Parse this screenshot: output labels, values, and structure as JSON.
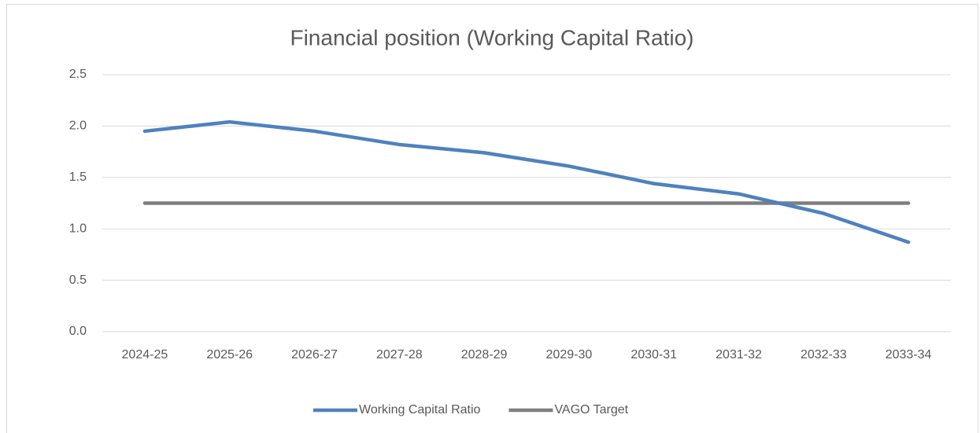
{
  "chart_data": {
    "type": "line",
    "title": "Financial position (Working Capital Ratio)",
    "categories": [
      "2024-25",
      "2025-26",
      "2026-27",
      "2027-28",
      "2028-29",
      "2029-30",
      "2030-31",
      "2031-32",
      "2032-33",
      "2033-34"
    ],
    "series": [
      {
        "name": "Working Capital Ratio",
        "color": "#4f81bd",
        "values": [
          1.95,
          2.04,
          1.95,
          1.82,
          1.74,
          1.61,
          1.44,
          1.34,
          1.15,
          0.87
        ]
      },
      {
        "name": "VAGO Target",
        "color": "#7f7f7f",
        "values": [
          1.25,
          1.25,
          1.25,
          1.25,
          1.25,
          1.25,
          1.25,
          1.25,
          1.25,
          1.25
        ]
      }
    ],
    "ylim": [
      0,
      2.5
    ],
    "yticks": [
      {
        "value": 0,
        "label": "0.0"
      },
      {
        "value": 0.5,
        "label": "0.5"
      },
      {
        "value": 1,
        "label": "1.0"
      },
      {
        "value": 1.5,
        "label": "1.5"
      },
      {
        "value": 2,
        "label": "2.0"
      },
      {
        "value": 2.5,
        "label": "2.5"
      }
    ],
    "grid": true,
    "legend": "bottom"
  }
}
